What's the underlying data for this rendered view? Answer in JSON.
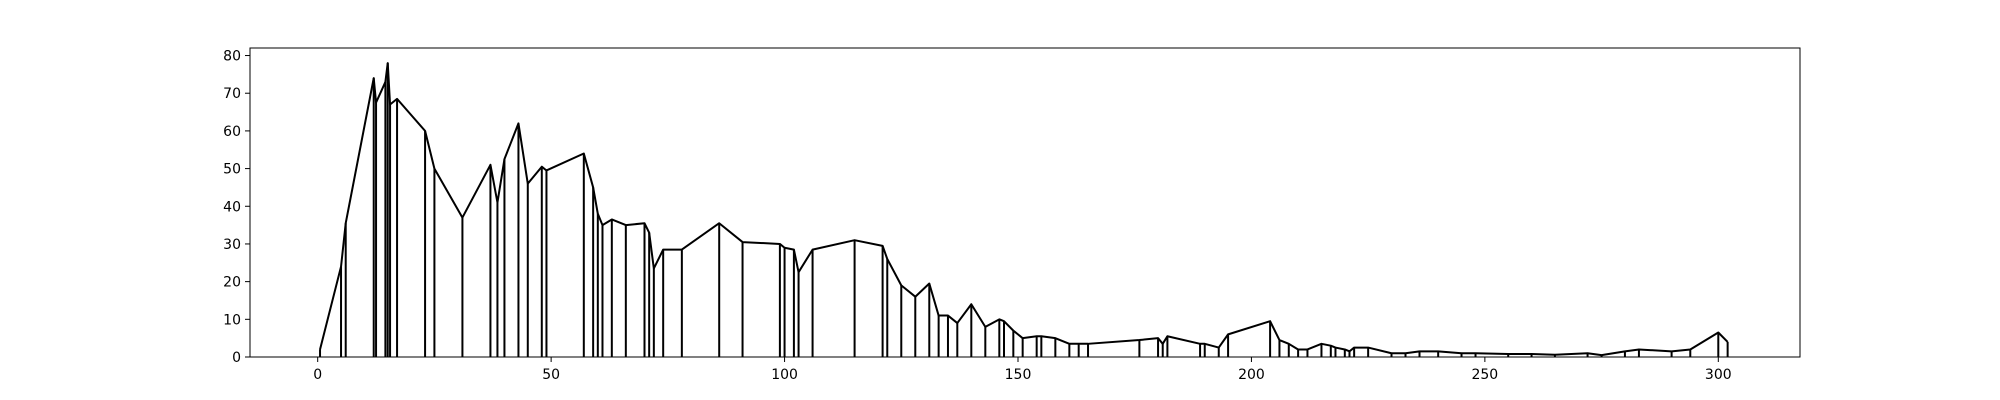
{
  "chart_data": {
    "type": "line",
    "title": "",
    "xlabel": "",
    "ylabel": "",
    "xlim": [
      -14.5,
      317.5
    ],
    "ylim": [
      0,
      82
    ],
    "xticks": [
      0,
      50,
      100,
      150,
      200,
      250,
      300
    ],
    "yticks": [
      0,
      10,
      20,
      30,
      40,
      50,
      60,
      70,
      80
    ],
    "xtick_labels": [
      "0",
      "50",
      "100",
      "150",
      "200",
      "250",
      "300"
    ],
    "ytick_labels": [
      "0",
      "10",
      "20",
      "30",
      "40",
      "50",
      "60",
      "70",
      "80"
    ],
    "grid": false,
    "legend": "none",
    "line_color": "#000000",
    "series": [
      {
        "style": "envelope-with-vertical-lines",
        "x": [
          0.5,
          5,
          6,
          12,
          12.5,
          14.5,
          15,
          15.5,
          17,
          23,
          25,
          31,
          37,
          38.5,
          40,
          43,
          45,
          48,
          49,
          57,
          59,
          60,
          61,
          63,
          66,
          70,
          71,
          72,
          74,
          78,
          86,
          91,
          99,
          100,
          102,
          103,
          106,
          115,
          121,
          122,
          125,
          128,
          131,
          133,
          135,
          137,
          140,
          143,
          146,
          147,
          149,
          151,
          154,
          155,
          158,
          161,
          163,
          165,
          176,
          180,
          181,
          182,
          189,
          190,
          193,
          195,
          204,
          206,
          208,
          210,
          212,
          215,
          217,
          218,
          220,
          221,
          222,
          225,
          230,
          233,
          236,
          240,
          245,
          248,
          255,
          260,
          265,
          272,
          275,
          280,
          283,
          290,
          294,
          300,
          302
        ],
        "y": [
          2,
          24,
          35.5,
          74,
          67.5,
          73,
          78,
          67,
          68.5,
          60,
          50,
          37,
          51,
          41,
          52.5,
          62,
          46,
          50.5,
          49.5,
          54,
          45,
          38,
          35,
          36.5,
          35,
          35.5,
          33,
          23.5,
          28.5,
          28.5,
          35.5,
          30.5,
          30,
          29,
          28.5,
          22.5,
          28.5,
          31,
          29.5,
          26,
          19,
          16,
          19.5,
          11,
          11,
          9,
          14,
          8,
          10,
          9.5,
          7,
          5,
          5.5,
          5.5,
          5,
          3.5,
          3.5,
          3.5,
          4.5,
          5,
          3.5,
          5.5,
          3.5,
          3.5,
          2.5,
          6,
          9.5,
          4.5,
          3.5,
          2,
          2,
          3.5,
          3,
          2.5,
          2,
          1.5,
          2.5,
          2.5,
          1,
          1,
          1.5,
          1.5,
          1,
          1,
          0.8,
          0.8,
          0.6,
          1,
          0.5,
          1.5,
          2,
          1.5,
          2,
          6.5,
          4
        ]
      }
    ]
  }
}
